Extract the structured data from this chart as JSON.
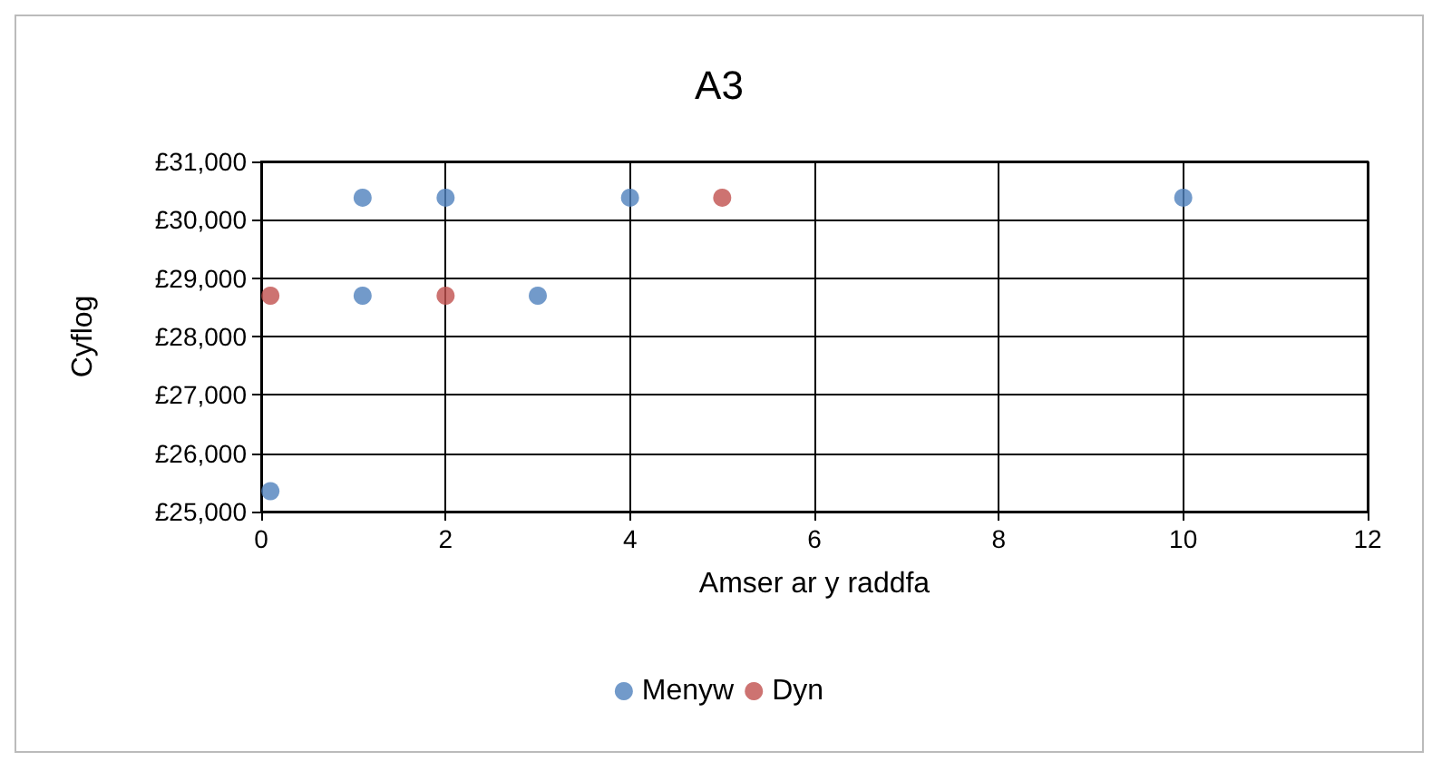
{
  "chart_data": {
    "type": "scatter",
    "title": "A3",
    "xlabel": "Amser ar y raddfa",
    "ylabel": "Cyflog",
    "series": [
      {
        "name": "Menyw",
        "color": "#4f81bd",
        "x": [
          0.1,
          1.1,
          1.1,
          2,
          3,
          4,
          10
        ],
        "values": [
          25350,
          30380,
          28700,
          30380,
          28700,
          30380,
          30380
        ]
      },
      {
        "name": "Dyn",
        "color": "#c0504d",
        "x": [
          0.1,
          2,
          5
        ],
        "values": [
          28700,
          28700,
          30380
        ]
      }
    ],
    "xlim": [
      0,
      12
    ],
    "xticks": [
      0,
      2,
      4,
      6,
      8,
      10,
      12
    ],
    "ylim": [
      25000,
      31000
    ],
    "yticks": [
      {
        "value": 25000,
        "label": "£25,000"
      },
      {
        "value": 26000,
        "label": "£26,000"
      },
      {
        "value": 27000,
        "label": "£27,000"
      },
      {
        "value": 28000,
        "label": "£28,000"
      },
      {
        "value": 29000,
        "label": "£29,000"
      },
      {
        "value": 30000,
        "label": "£30,000"
      },
      {
        "value": 31000,
        "label": "£31,000"
      }
    ],
    "grid": true,
    "legend": "bottom",
    "marker": "circle"
  }
}
